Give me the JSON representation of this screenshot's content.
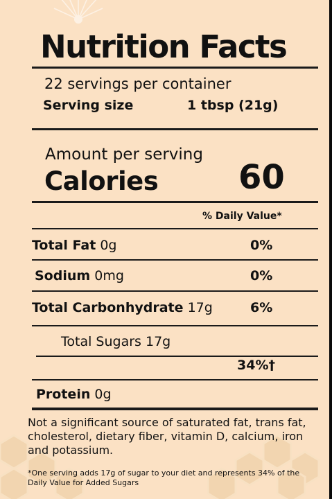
{
  "label": {
    "title": "Nutrition Facts",
    "servings_per_container": "22 servings per container",
    "serving_size_label": "Serving size",
    "serving_size_value": "1 tbsp (21g)",
    "amount_per_serving": "Amount per serving",
    "calories_label": "Calories",
    "calories_value": "60",
    "daily_value_header": "% Daily Value*",
    "nutrients": [
      {
        "name": "Total Fat",
        "amount": "0g",
        "dv": "0%"
      },
      {
        "name": "Sodium",
        "amount": "0mg",
        "dv": "0%"
      },
      {
        "name": "Total Carbonhydrate",
        "amount": "17g",
        "dv": "6%"
      },
      {
        "name": "Total Sugars",
        "amount": "17g",
        "dv": ""
      },
      {
        "name": "",
        "amount": "",
        "dv": "34%†"
      },
      {
        "name": "Protein",
        "amount": "0g",
        "dv": ""
      }
    ],
    "footnote": "Not a significant source of saturated fat, trans fat, cholesterol, dietary fiber, vitamin D, calcium, iron and potassium.",
    "added_sugar_note": "*One serving adds 17g of sugar to your diet and represents 34% of the Daily Value for Added Sugars"
  },
  "colors": {
    "background": "#fbe1c4",
    "text": "#111111",
    "rule": "#1a1a1a",
    "frame": "#000000"
  }
}
